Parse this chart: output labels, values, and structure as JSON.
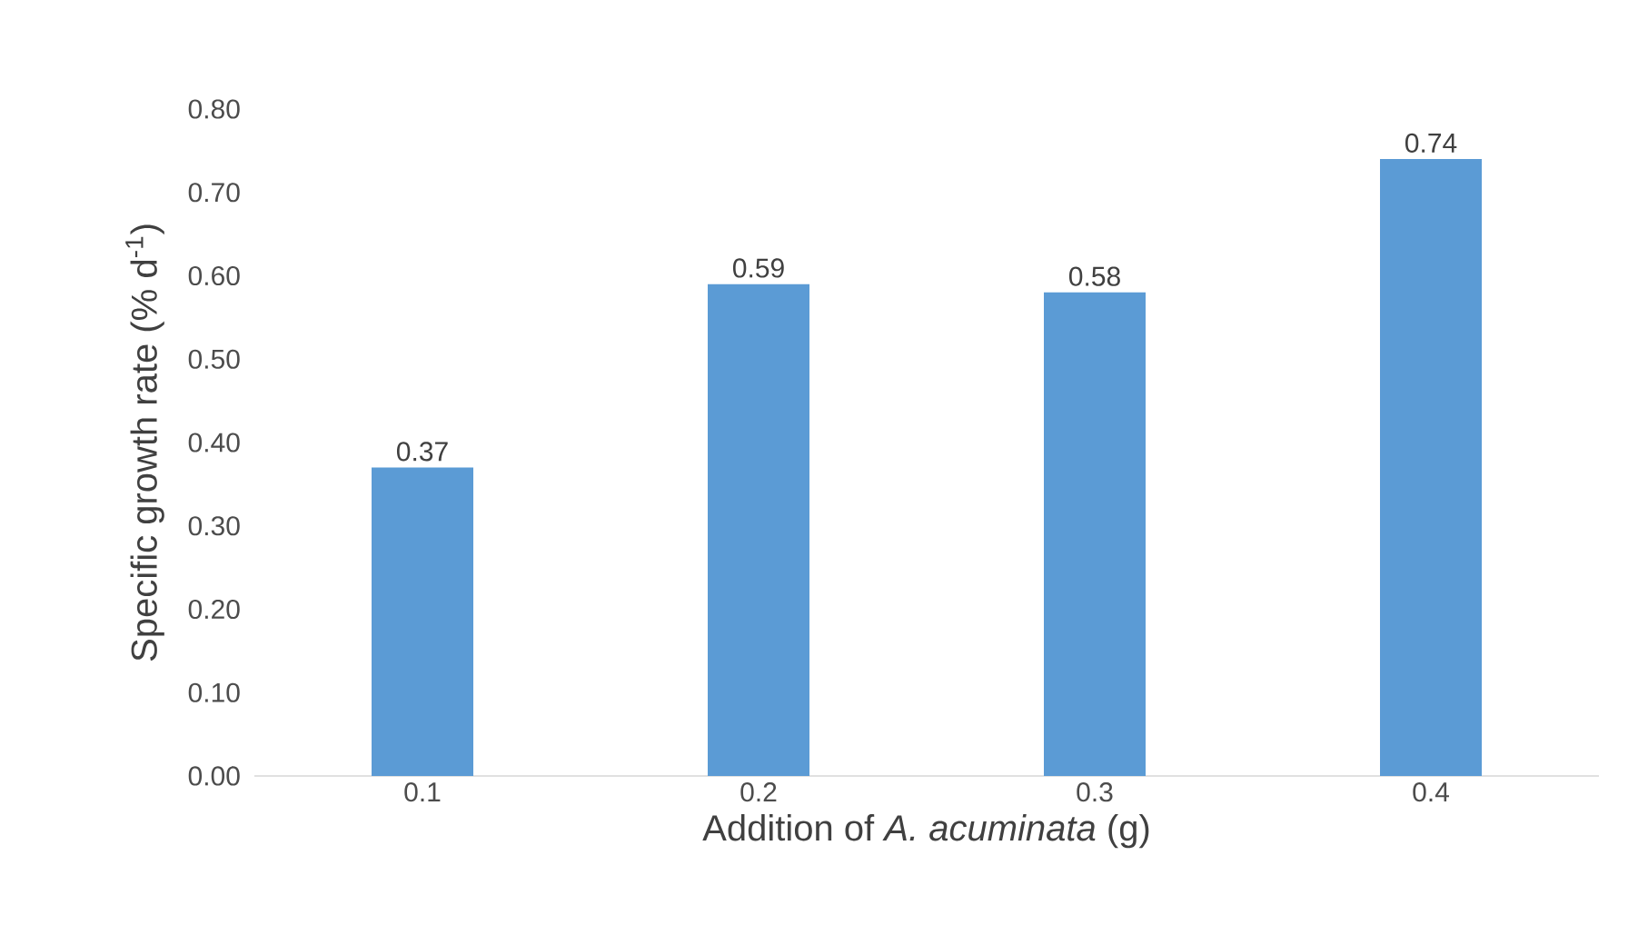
{
  "chart_data": {
    "type": "bar",
    "xlabel": "Addition of *A. acuminata* (g)",
    "ylabel": "Specific growth rate (% d$^{-1}$)",
    "categories": [
      "0.1",
      "0.2",
      "0.3",
      "0.4"
    ],
    "values": [
      0.37,
      0.59,
      0.58,
      0.74
    ],
    "color": "#5b9bd5",
    "data_labels": true,
    "ylim": [
      0,
      0.8
    ],
    "yticks": [
      {
        "value": 0,
        "label": "0.00"
      },
      {
        "value": 0.1,
        "label": "0.10"
      },
      {
        "value": 0.2,
        "label": "0.20"
      },
      {
        "value": 0.3,
        "label": "0.30"
      },
      {
        "value": 0.4,
        "label": "0.40"
      },
      {
        "value": 0.5,
        "label": "0.50"
      },
      {
        "value": 0.6,
        "label": "0.60"
      },
      {
        "value": 0.7,
        "label": "0.70"
      },
      {
        "value": 0.8,
        "label": "0.80"
      }
    ]
  }
}
